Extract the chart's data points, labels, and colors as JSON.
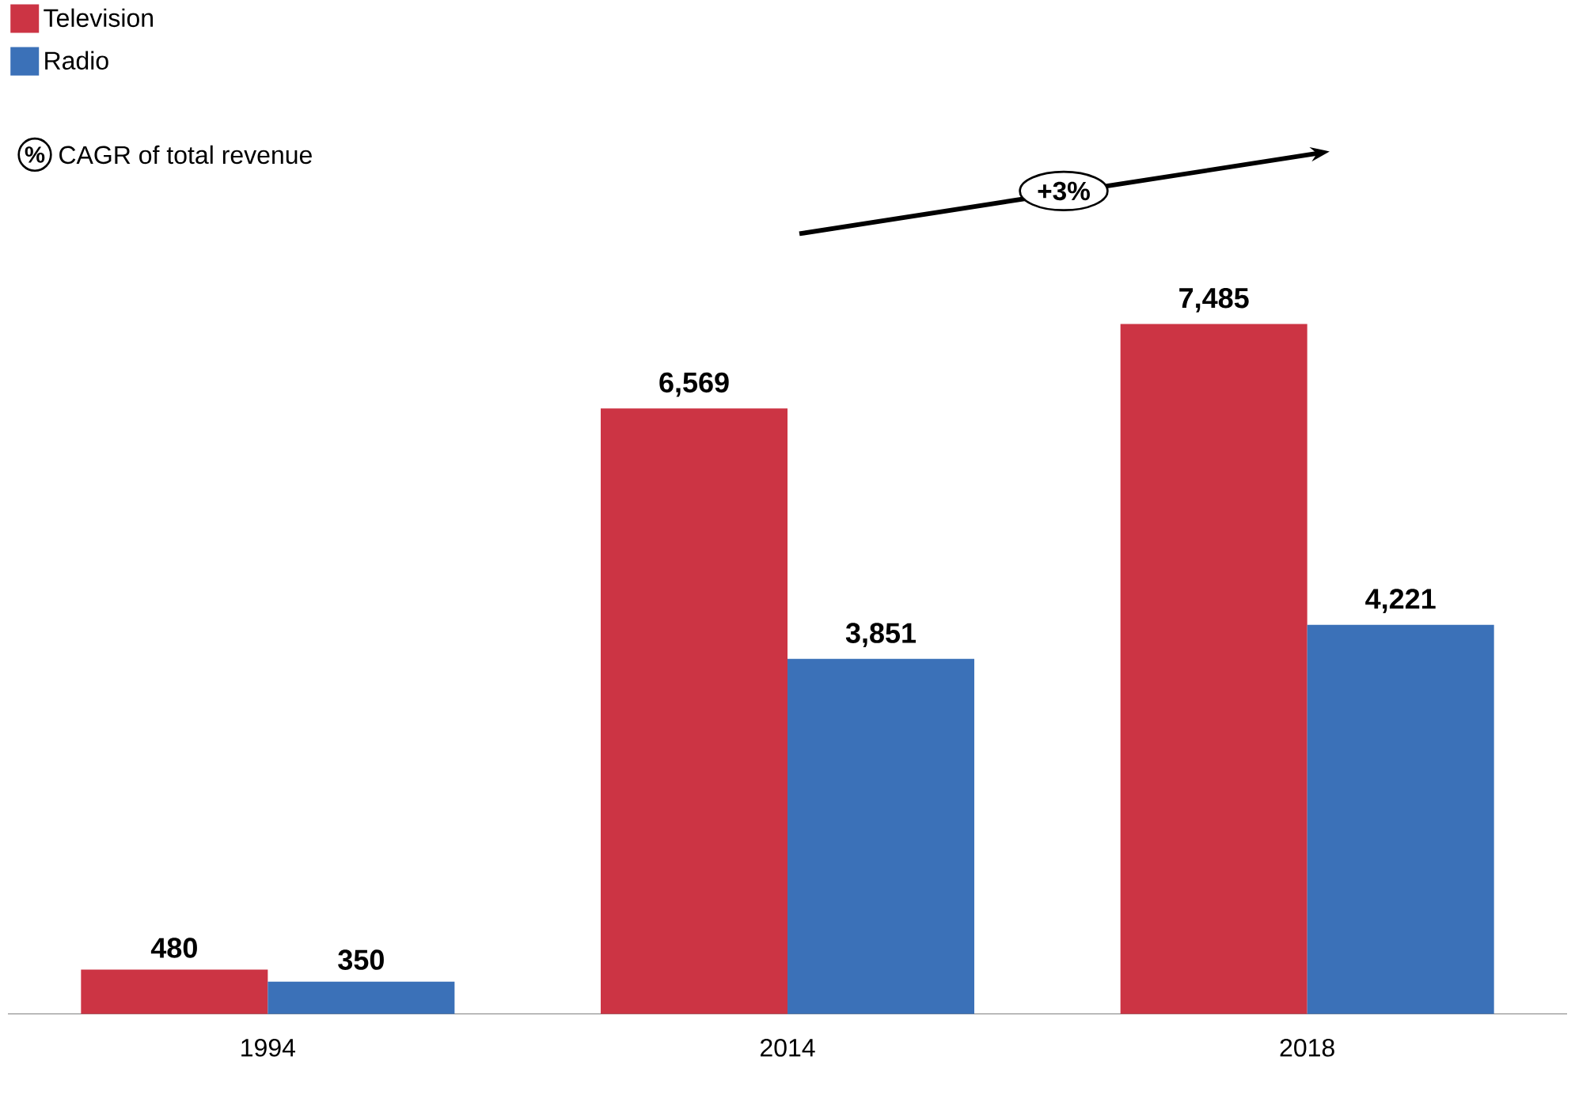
{
  "chart_data": {
    "type": "bar",
    "categories": [
      "1994",
      "2014",
      "2018"
    ],
    "series": [
      {
        "name": "Television",
        "color": "#cc3444",
        "values": [
          480,
          6569,
          7485
        ],
        "value_labels": [
          "480",
          "6,569",
          "7,485"
        ]
      },
      {
        "name": "Radio",
        "color": "#3b71b8",
        "values": [
          350,
          3851,
          4221
        ],
        "value_labels": [
          "350",
          "3,851",
          "4,221"
        ]
      }
    ],
    "legend": "top left",
    "annotations": [
      "%",
      "CAGR of total revenue",
      "+3%"
    ]
  }
}
